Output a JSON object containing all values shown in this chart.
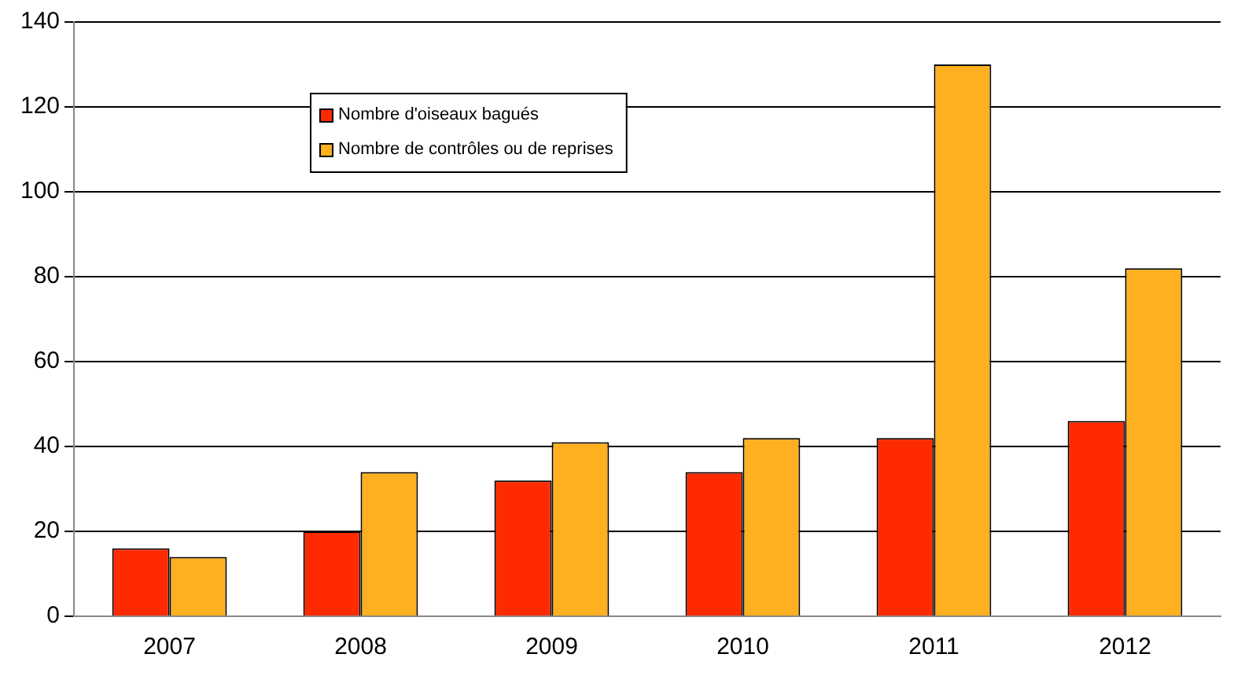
{
  "chart_data": {
    "type": "bar",
    "categories": [
      "2007",
      "2008",
      "2009",
      "2010",
      "2011",
      "2012"
    ],
    "series": [
      {
        "name": "Nombre d'oiseaux bagués",
        "color": "#ff2a00",
        "values": [
          16,
          20,
          32,
          34,
          42,
          46
        ]
      },
      {
        "name": "Nombre de contrôles ou de reprises",
        "color": "#ffb020",
        "values": [
          14,
          34,
          41,
          42,
          130,
          82
        ]
      }
    ],
    "ylim": [
      0,
      140
    ],
    "yticks": [
      0,
      20,
      40,
      60,
      80,
      100,
      120,
      140
    ],
    "grid": "y",
    "legend": "top left"
  }
}
